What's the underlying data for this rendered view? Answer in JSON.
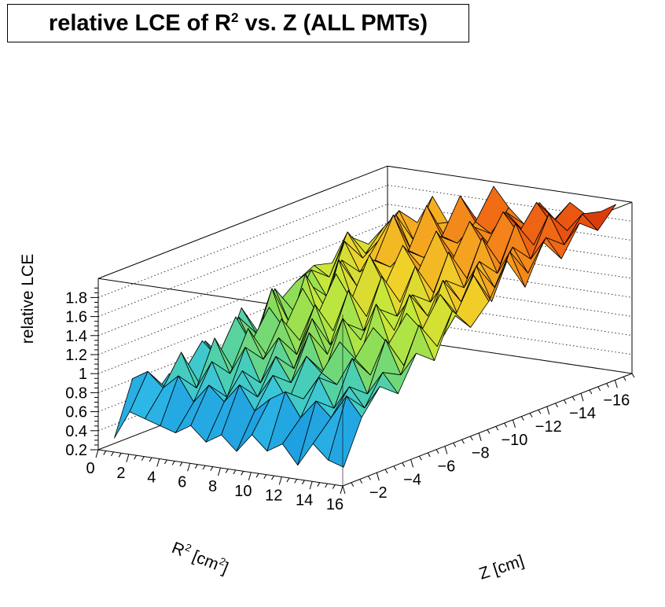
{
  "chart_data": {
    "type": "surface",
    "title": {
      "text_before": "relative LCE of R",
      "superscript": "2",
      "text_after": " vs. Z (ALL PMTs)"
    },
    "ylabel": "relative LCE",
    "xlabel": {
      "text_before": "R",
      "superscript": "2",
      "text_middle": " [cm",
      "superscript2": "2",
      "text_after": "]"
    },
    "zlabel": "Z [cm]",
    "x_axis": {
      "name": "R^2 [cm^2]",
      "range": [
        0,
        16
      ],
      "ticks": [
        "0",
        "2",
        "4",
        "6",
        "8",
        "10",
        "12",
        "14",
        "16"
      ]
    },
    "z_axis": {
      "name": "Z [cm]",
      "range": [
        -17,
        0
      ],
      "ticks": [
        "−2",
        "−4",
        "−6",
        "−8",
        "−10",
        "−12",
        "−14",
        "−16"
      ]
    },
    "y_axis": {
      "name": "relative LCE",
      "range": [
        0.2,
        2.0
      ],
      "ticks": [
        "0.2",
        "0.4",
        "0.6",
        "0.8",
        "1",
        "1.2",
        "1.4",
        "1.6",
        "1.8"
      ]
    },
    "grid": true,
    "colormap": [
      "#0b3a8c",
      "#1168c8",
      "#1fa0e0",
      "#33c0e8",
      "#4cd0b0",
      "#86dc5c",
      "#c4e83a",
      "#f0d12a",
      "#f59a1e",
      "#ee5a12",
      "#c81e06"
    ],
    "r2_bins": [
      0,
      1,
      2,
      3,
      4,
      5,
      6,
      7,
      8,
      9,
      10,
      11,
      12,
      13,
      14,
      15,
      16
    ],
    "z_bins": [
      -1,
      -2,
      -3,
      -4,
      -5,
      -6,
      -7,
      -8,
      -9,
      -10,
      -11,
      -12,
      -13,
      -14,
      -15,
      -16
    ],
    "values": [
      [
        0.3,
        0.85,
        0.55,
        0.75,
        0.6,
        0.95,
        0.7,
        1.15,
        0.8,
        1.05,
        1.2,
        1.3,
        1.25,
        1.45,
        1.3,
        1.4
      ],
      [
        0.6,
        0.95,
        0.7,
        0.8,
        1.05,
        0.75,
        1.15,
        0.9,
        1.3,
        1.0,
        1.35,
        1.2,
        1.6,
        1.3,
        1.5,
        1.45
      ],
      [
        0.55,
        0.8,
        1.1,
        0.7,
        0.9,
        1.25,
        0.85,
        1.4,
        0.95,
        1.3,
        1.1,
        1.6,
        1.35,
        1.45,
        1.7,
        1.5
      ],
      [
        0.5,
        0.95,
        0.75,
        1.2,
        0.8,
        1.0,
        1.3,
        0.95,
        1.5,
        1.1,
        1.5,
        1.3,
        1.55,
        1.75,
        1.4,
        1.8
      ],
      [
        0.45,
        0.7,
        1.05,
        0.85,
        1.25,
        0.9,
        1.1,
        1.45,
        1.0,
        1.6,
        1.25,
        1.45,
        1.85,
        1.4,
        1.6,
        1.55
      ],
      [
        0.55,
        0.9,
        0.7,
        1.15,
        0.95,
        1.3,
        1.0,
        1.2,
        1.55,
        1.15,
        1.55,
        1.4,
        1.5,
        1.9,
        1.5,
        1.7
      ],
      [
        0.4,
        0.75,
        1.0,
        0.8,
        1.2,
        0.95,
        1.4,
        1.05,
        1.3,
        1.7,
        1.3,
        1.6,
        1.45,
        1.6,
        1.95,
        1.6
      ],
      [
        0.5,
        0.95,
        0.75,
        1.1,
        0.9,
        1.35,
        1.0,
        1.5,
        1.15,
        1.4,
        1.75,
        1.45,
        1.7,
        1.55,
        1.7,
        2.0
      ],
      [
        0.35,
        0.7,
        1.0,
        0.85,
        1.3,
        1.0,
        1.25,
        1.1,
        1.6,
        1.25,
        1.5,
        1.85,
        1.5,
        1.75,
        1.6,
        1.8
      ],
      [
        0.55,
        0.85,
        0.75,
        1.15,
        0.9,
        1.4,
        1.1,
        1.35,
        1.2,
        1.65,
        1.3,
        1.55,
        1.9,
        1.6,
        1.85,
        1.65
      ],
      [
        0.4,
        0.95,
        0.8,
        1.0,
        1.25,
        0.95,
        1.5,
        1.15,
        1.45,
        1.3,
        1.75,
        1.4,
        1.65,
        1.95,
        1.7,
        1.9
      ],
      [
        0.5,
        0.7,
        1.05,
        0.9,
        1.1,
        1.35,
        1.05,
        1.55,
        1.25,
        1.55,
        1.4,
        1.85,
        1.5,
        1.75,
        2.0,
        1.75
      ],
      [
        0.3,
        0.9,
        0.75,
        1.2,
        0.95,
        1.2,
        1.45,
        1.15,
        1.65,
        1.35,
        1.7,
        1.5,
        1.95,
        1.65,
        1.8,
        1.95
      ],
      [
        0.55,
        0.75,
        1.0,
        0.85,
        1.35,
        1.0,
        1.3,
        1.6,
        1.3,
        1.75,
        1.45,
        1.8,
        1.6,
        2.0,
        1.75,
        1.85
      ],
      [
        0.4,
        1.0,
        0.8,
        1.1,
        1.0,
        1.45,
        1.15,
        1.4,
        1.75,
        1.4,
        1.85,
        1.55,
        1.85,
        1.7,
        1.95,
        1.9
      ],
      [
        0.35,
        0.8,
        1.05,
        0.9,
        1.25,
        1.1,
        1.55,
        1.3,
        1.5,
        1.85,
        1.5,
        1.9,
        1.65,
        1.95,
        1.8,
        2.0
      ]
    ]
  }
}
